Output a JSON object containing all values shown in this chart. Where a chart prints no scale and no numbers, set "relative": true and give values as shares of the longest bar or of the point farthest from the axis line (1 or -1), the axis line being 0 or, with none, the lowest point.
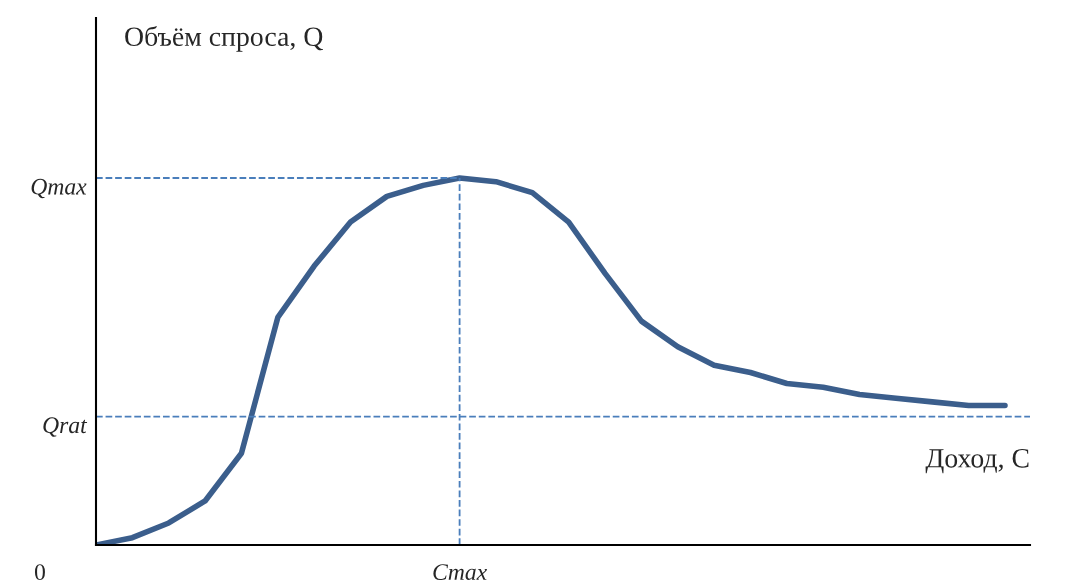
{
  "chart_data": {
    "type": "line",
    "relative": true,
    "xlabel": "Доход, C",
    "ylabel": "Объём спроса, Q",
    "categories": [
      null,
      null,
      null,
      null,
      null,
      null,
      null,
      null,
      null,
      null,
      null,
      null,
      null,
      null,
      null,
      null,
      null,
      null,
      null,
      null,
      null,
      null,
      null,
      null,
      null,
      null
    ],
    "series": [
      {
        "color": "#3b5e8c",
        "values": [
          0,
          0.02,
          0.06,
          0.12,
          0.25,
          0.62,
          0.76,
          0.88,
          0.95,
          0.98,
          1,
          0.99,
          0.96,
          0.88,
          0.74,
          0.61,
          0.54,
          0.49,
          0.47,
          0.44,
          0.43,
          0.41,
          0.4,
          0.39,
          0.38,
          0.38
        ]
      }
    ],
    "ref_lines": [
      {
        "axis": "y",
        "value": 1,
        "label": "Qmax",
        "color": "#4a7ebb",
        "line_style": "dashed"
      },
      {
        "axis": "y",
        "value": 0.35,
        "label": "Qrat",
        "color": "#4a7ebb",
        "line_style": "dashed"
      }
    ],
    "annotations": [
      "0",
      "Cmax"
    ]
  }
}
